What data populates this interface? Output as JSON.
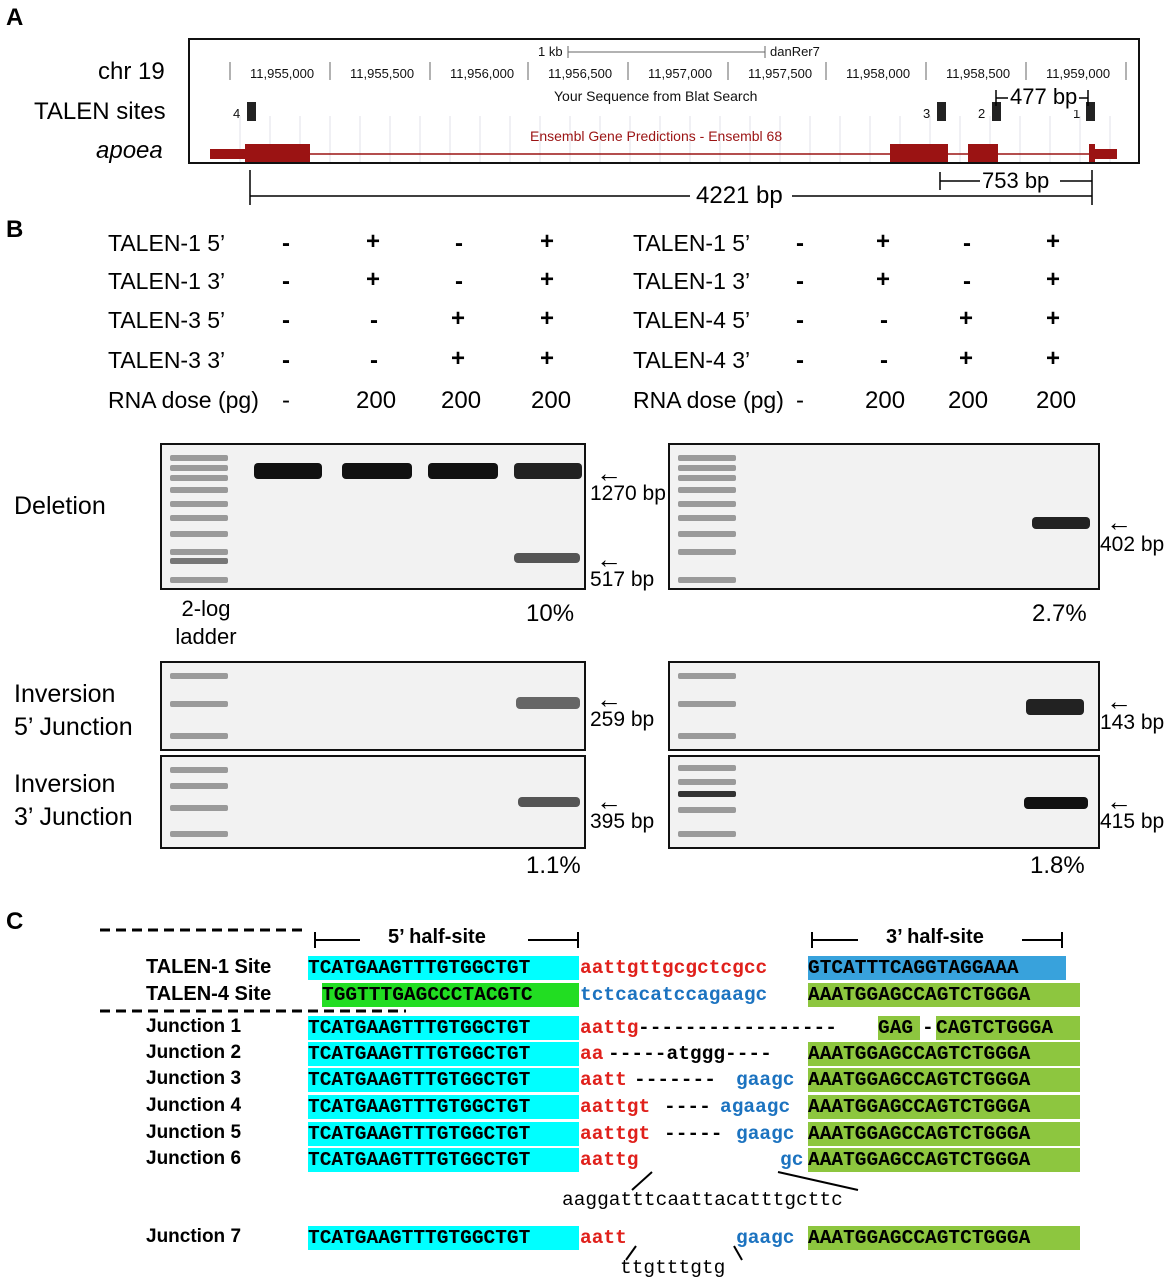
{
  "panelA": {
    "letter": "A",
    "labels": {
      "chr": "chr 19",
      "talen": "TALEN sites",
      "gene": "apoea"
    },
    "scale": "1 kb",
    "assembly": "danRer7",
    "coords": [
      "11,955,000",
      "11,955,500",
      "11,956,000",
      "11,956,500",
      "11,957,000",
      "11,957,500",
      "11,958,000",
      "11,958,500",
      "11,959,000"
    ],
    "blat": "Your Sequence from Blat Search",
    "ensembl": "Ensembl Gene Predictions - Ensembl 68",
    "sites": [
      "4",
      "3",
      "2",
      "1"
    ],
    "dist477": "477 bp",
    "dist4221": "4221 bp",
    "dist753": "753 bp"
  },
  "panelB": {
    "letter": "B",
    "left": {
      "rows": [
        "TALEN-1 5’",
        "TALEN-1 3’",
        "TALEN-3 5’",
        "TALEN-3 3’",
        "RNA dose (pg)"
      ],
      "cols": [
        [
          "-",
          "-",
          "-",
          "-",
          "-"
        ],
        [
          "+",
          "+",
          "-",
          "-",
          "200"
        ],
        [
          "-",
          "-",
          "+",
          "+",
          "200"
        ],
        [
          "+",
          "+",
          "+",
          "+",
          "200"
        ]
      ]
    },
    "right": {
      "rows": [
        "TALEN-1 5’",
        "TALEN-1 3’",
        "TALEN-4 5’",
        "TALEN-4 3’",
        "RNA dose (pg)"
      ],
      "cols": [
        [
          "-",
          "-",
          "-",
          "-",
          "-"
        ],
        [
          "+",
          "+",
          "-",
          "-",
          "200"
        ],
        [
          "-",
          "-",
          "+",
          "+",
          "200"
        ],
        [
          "+",
          "+",
          "+",
          "+",
          "200"
        ]
      ]
    },
    "deletion": "Deletion",
    "inv5": [
      "Inversion",
      "5’ Junction"
    ],
    "inv3": [
      "Inversion",
      "3’ Junction"
    ],
    "ladder": [
      "2-log",
      "ladder"
    ],
    "bands": {
      "b1270": "1270 bp",
      "b517": "517 bp",
      "b402": "402 bp",
      "b259": "259 bp",
      "b143": "143 bp",
      "b395": "395 bp",
      "b415": "415 bp"
    },
    "pct": {
      "delLeft": "10%",
      "delRight": "2.7%",
      "invLeft": "1.1%",
      "invRight": "1.8%"
    }
  },
  "panelC": {
    "letter": "C",
    "half5": "5’ half-site",
    "half3": "3’ half-site",
    "rows": [
      {
        "label": "TALEN-1 Site",
        "a": "TCATGAAGTTTGTGGCTGT",
        "b": "aattgttgcgctcgcc",
        "c": "GTCATTTCAGGTAGGAAA"
      },
      {
        "label": "TALEN-4 Site",
        "a": "TGGTTTGAGCCCTACGTC",
        "b": "tctcacatccagaagc",
        "c": "AAATGGAGCCAGTCTGGGA"
      },
      {
        "label": "Junction 1",
        "a": "TCATGAAGTTTGTGGCTGT",
        "b": "aattg",
        "gap": "-----------------",
        "c1": "GAG",
        "gap2": "-",
        "c": "CAGTCTGGGA"
      },
      {
        "label": "Junction 2",
        "a": "TCATGAAGTTTGTGGCTGT",
        "b": "aa",
        "gap": "-----atggg----",
        "c": "AAATGGAGCCAGTCTGGGA"
      },
      {
        "label": "Junction 3",
        "a": "TCATGAAGTTTGTGGCTGT",
        "b": "aatt",
        "gap": "-------",
        "d": "gaagc",
        "c": "AAATGGAGCCAGTCTGGGA"
      },
      {
        "label": "Junction 4",
        "a": "TCATGAAGTTTGTGGCTGT",
        "b": "aattgt",
        "gap": "----",
        "d": "agaagc",
        "c": "AAATGGAGCCAGTCTGGGA"
      },
      {
        "label": "Junction 5",
        "a": "TCATGAAGTTTGTGGCTGT",
        "b": "aattgt",
        "gap": "-----",
        "d": "gaagc",
        "c": "AAATGGAGCCAGTCTGGGA"
      },
      {
        "label": "Junction 6",
        "a": "TCATGAAGTTTGTGGCTGT",
        "b": "aattg",
        "d": "gc",
        "c": "AAATGGAGCCAGTCTGGGA"
      },
      {
        "label": "Junction 7",
        "a": "TCATGAAGTTTGTGGCTGT",
        "b": "aatt",
        "d": "gaagc",
        "c": "AAATGGAGCCAGTCTGGGA"
      }
    ],
    "ins6": "aaggatttcaattacatttgcttc",
    "ins7": "ttgtttgtg"
  },
  "colors": {
    "gene": "#9b1313",
    "cyan": "#00ffff",
    "green": "#8dc63f",
    "blue": "#38a2dc",
    "red": "#e0201b",
    "seqBlue": "#1c73c0"
  }
}
